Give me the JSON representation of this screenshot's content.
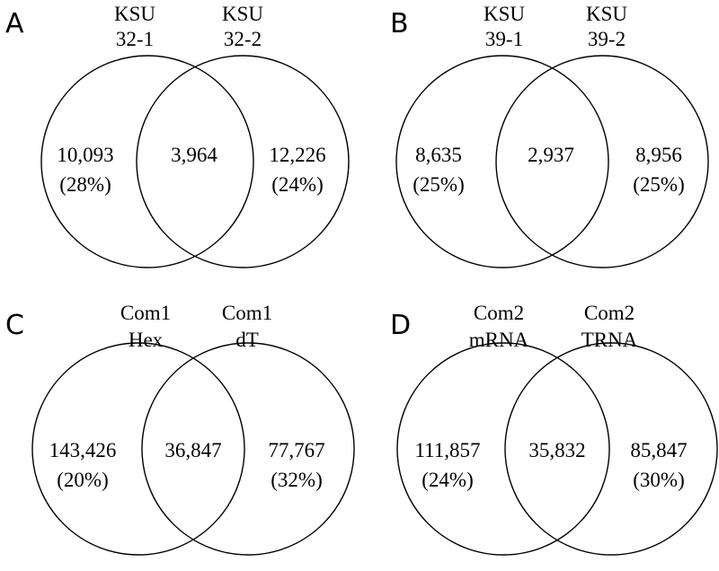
{
  "panels": [
    {
      "letter": "A",
      "left_label": [
        "KSU",
        "32-1"
      ],
      "right_label": [
        "KSU",
        "32-2"
      ],
      "left_only": "10,093",
      "left_pct": "(28%)",
      "overlap": "3,964",
      "right_only": "12,226",
      "right_pct": "(24%)"
    },
    {
      "letter": "B",
      "left_label": [
        "KSU",
        "39-1"
      ],
      "right_label": [
        "KSU",
        "39-2"
      ],
      "left_only": "8,635",
      "left_pct": "(25%)",
      "overlap": "2,937",
      "right_only": "8,956",
      "right_pct": "(25%)"
    },
    {
      "letter": "C",
      "left_label": [
        "Com1",
        "Hex"
      ],
      "right_label": [
        "Com1",
        "dT"
      ],
      "left_only": "143,426",
      "left_pct": "(20%)",
      "overlap": "36,847",
      "right_only": "77,767",
      "right_pct": "(32%)"
    },
    {
      "letter": "D",
      "left_label": [
        "Com2",
        "mRNA"
      ],
      "right_label": [
        "Com2",
        "TRNA"
      ],
      "left_only": "111,857",
      "left_pct": "(24%)",
      "overlap": "35,832",
      "right_only": "85,847",
      "right_pct": "(30%)"
    }
  ]
}
